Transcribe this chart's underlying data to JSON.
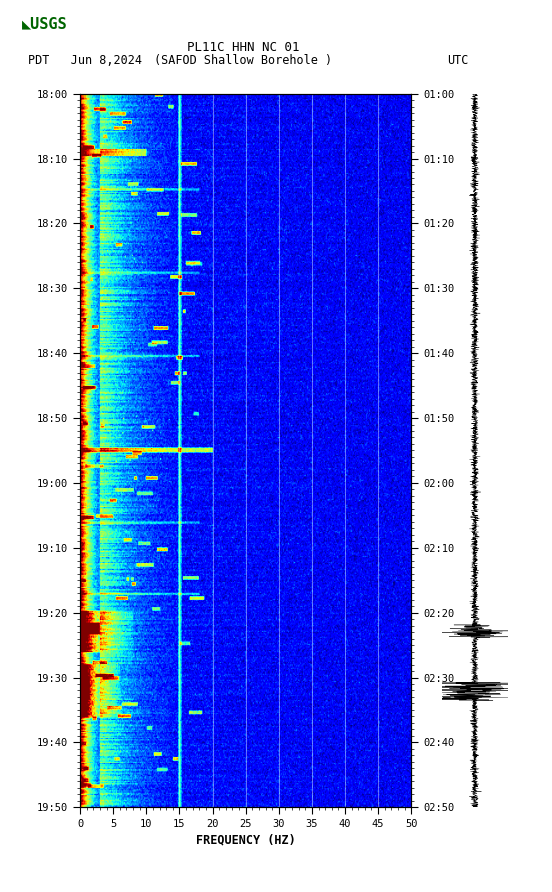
{
  "title_line1": "PL11C HHN NC 01",
  "title_line2_left": "PDT   Jun 8,2024",
  "title_line2_center": "(SAFOD Shallow Borehole )",
  "title_line2_right": "UTC",
  "xlabel": "FREQUENCY (HZ)",
  "freq_min": 0,
  "freq_max": 50,
  "freq_ticks": [
    0,
    5,
    10,
    15,
    20,
    25,
    30,
    35,
    40,
    45,
    50
  ],
  "time_labels_left": [
    "18:00",
    "18:10",
    "18:20",
    "18:30",
    "18:40",
    "18:50",
    "19:00",
    "19:10",
    "19:20",
    "19:30",
    "19:40",
    "19:50"
  ],
  "time_labels_right": [
    "01:00",
    "01:10",
    "01:20",
    "01:30",
    "01:40",
    "01:50",
    "02:00",
    "02:10",
    "02:20",
    "02:30",
    "02:40",
    "02:50"
  ],
  "n_time_steps": 600,
  "n_freq_bins": 500,
  "vertical_lines_freq": [
    15,
    20,
    25,
    30,
    35,
    40,
    45
  ],
  "fig_width": 5.52,
  "fig_height": 8.92
}
